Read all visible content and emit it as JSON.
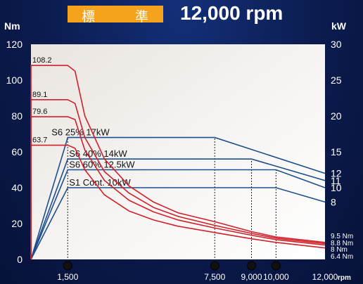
{
  "header": {
    "badge_chars": [
      "標",
      "準"
    ],
    "speed_label": "12,000 rpm",
    "left_unit": "Nm",
    "right_unit": "kW"
  },
  "colors": {
    "torque": "#d0202a",
    "power": "#1c4f8c",
    "badge": "#f5a21c",
    "background": "#0b1b4d"
  },
  "chart_data": {
    "type": "line",
    "x_unit": "rpm",
    "xlim": [
      0,
      12000
    ],
    "ylim_left": [
      0,
      120
    ],
    "ylim_right": [
      0,
      30
    ],
    "x_ticks": [
      {
        "value": 1500,
        "label": "1,500"
      },
      {
        "value": 7500,
        "label": "7,500"
      },
      {
        "value": 9000,
        "label": "9,000"
      },
      {
        "value": 10000,
        "label": "10,000"
      },
      {
        "value": 12000,
        "label": "12,000"
      }
    ],
    "y_left_ticks": [
      0,
      20,
      40,
      60,
      80,
      100,
      120
    ],
    "y_right_ticks": [
      {
        "value": 8,
        "label": "8"
      },
      {
        "value": 10,
        "label": "10"
      },
      {
        "value": 11,
        "label": "11"
      },
      {
        "value": 12,
        "label": "12"
      },
      {
        "value": 15,
        "label": "15"
      },
      {
        "value": 20,
        "label": "20"
      },
      {
        "value": 25,
        "label": "25"
      },
      {
        "value": 30,
        "label": "30"
      }
    ],
    "guide_speeds": [
      1500,
      7500,
      9000,
      10000
    ],
    "torque_series": [
      {
        "start_label": "108.2",
        "end_label": "9.5 Nm",
        "values": [
          [
            0,
            0
          ],
          [
            1500,
            108.2
          ],
          [
            1500,
            108.2
          ],
          [
            1800,
            105
          ],
          [
            2200,
            80
          ],
          [
            3000,
            56
          ],
          [
            4000,
            41
          ],
          [
            5000,
            32
          ],
          [
            6000,
            26
          ],
          [
            7500,
            21
          ],
          [
            9000,
            15.5
          ],
          [
            10000,
            12.5
          ],
          [
            12000,
            9.5
          ]
        ]
      },
      {
        "start_label": "89.1",
        "end_label": "8.8 Nm",
        "values": [
          [
            0,
            0
          ],
          [
            1500,
            89.1
          ],
          [
            1800,
            87
          ],
          [
            2200,
            68
          ],
          [
            3000,
            49
          ],
          [
            4000,
            37
          ],
          [
            5000,
            29
          ],
          [
            6000,
            24
          ],
          [
            7500,
            19
          ],
          [
            9000,
            14.5
          ],
          [
            10000,
            11.8
          ],
          [
            12000,
            8.8
          ]
        ]
      },
      {
        "start_label": "79.6",
        "end_label": "8 Nm",
        "values": [
          [
            0,
            0
          ],
          [
            1500,
            79.6
          ],
          [
            1800,
            78
          ],
          [
            2200,
            61
          ],
          [
            3000,
            44
          ],
          [
            4000,
            33
          ],
          [
            5000,
            26.5
          ],
          [
            6000,
            22
          ],
          [
            7500,
            17.5
          ],
          [
            9000,
            13.5
          ],
          [
            10000,
            11
          ],
          [
            12000,
            8
          ]
        ]
      },
      {
        "start_label": "63.7",
        "end_label": "6.4 Nm",
        "values": [
          [
            0,
            0
          ],
          [
            1500,
            63.7
          ],
          [
            1800,
            62
          ],
          [
            2200,
            50
          ],
          [
            3000,
            36
          ],
          [
            4000,
            27
          ],
          [
            5000,
            22
          ],
          [
            6000,
            18.5
          ],
          [
            7500,
            15
          ],
          [
            9000,
            11.5
          ],
          [
            10000,
            9.5
          ],
          [
            12000,
            6.4
          ]
        ]
      }
    ],
    "power_series": [
      {
        "name": "S6 25% 17kW",
        "values": [
          [
            0,
            0
          ],
          [
            1500,
            17
          ],
          [
            7500,
            17
          ],
          [
            12000,
            12
          ]
        ]
      },
      {
        "name": "S6 40% 14kW",
        "values": [
          [
            0,
            0
          ],
          [
            1500,
            14
          ],
          [
            9000,
            14
          ],
          [
            12000,
            11
          ]
        ]
      },
      {
        "name": "S6 60% 12.5kW",
        "values": [
          [
            0,
            0
          ],
          [
            1500,
            12.5
          ],
          [
            10000,
            12.5
          ],
          [
            12000,
            10
          ]
        ]
      },
      {
        "name": "S1 Cont. 10kW",
        "values": [
          [
            0,
            0
          ],
          [
            1500,
            10
          ],
          [
            10000,
            10
          ],
          [
            12000,
            8
          ]
        ]
      }
    ]
  }
}
